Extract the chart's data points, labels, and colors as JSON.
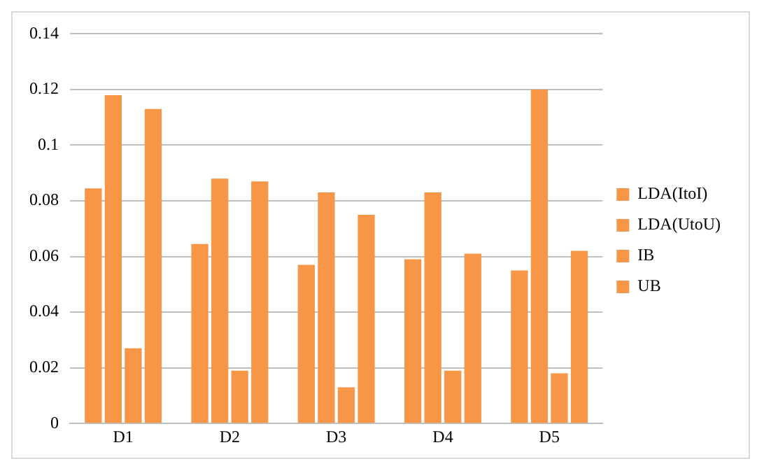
{
  "chart_data": {
    "type": "bar",
    "categories": [
      "D1",
      "D2",
      "D3",
      "D4",
      "D5"
    ],
    "series": [
      {
        "name": "LDA(ItoI)",
        "color": "#f79646",
        "values": [
          0.0845,
          0.0645,
          0.057,
          0.059,
          0.055
        ]
      },
      {
        "name": "LDA(UtoU)",
        "color": "#f79646",
        "values": [
          0.118,
          0.088,
          0.083,
          0.083,
          0.12
        ]
      },
      {
        "name": "IB",
        "color": "#f79646",
        "values": [
          0.027,
          0.019,
          0.013,
          0.019,
          0.018
        ]
      },
      {
        "name": "UB",
        "color": "#f79646",
        "values": [
          0.113,
          0.087,
          0.075,
          0.061,
          0.062
        ]
      }
    ],
    "ylim": [
      0,
      0.14
    ],
    "yticks": [
      0,
      0.02,
      0.04,
      0.06,
      0.08,
      0.1,
      0.12,
      0.14
    ],
    "grid": "y",
    "legend": "right"
  }
}
